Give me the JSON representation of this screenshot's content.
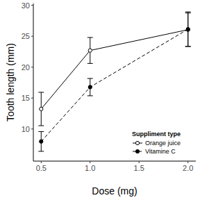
{
  "chart_data": {
    "type": "line",
    "x_label": "Dose (mg)",
    "y_label": "Tooth length (mm)",
    "x": [
      0.5,
      1,
      2
    ],
    "xlim": [
      0.42,
      2.08
    ],
    "xticks": [
      {
        "value": 0.5,
        "label": "0.5"
      },
      {
        "value": 1,
        "label": "1.0"
      },
      {
        "value": 1.5,
        "label": "1.5"
      },
      {
        "value": 2,
        "label": "2.0"
      }
    ],
    "ylim": [
      4.8,
      30.3
    ],
    "yticks": [
      10,
      15,
      20,
      25,
      30
    ],
    "grid": false,
    "legend": "bottom-right",
    "legend_title": "Suppliment type",
    "series": [
      {
        "name": "Orange juice",
        "color": "#000000",
        "marker": "circle_open",
        "line_style": "solid",
        "values": [
          13.23,
          22.7,
          26.06
        ],
        "errors": [
          2.7,
          2.1,
          2.7
        ]
      },
      {
        "name": "Vitamine C",
        "color": "#000000",
        "marker": "circle",
        "line_style": "dashed",
        "values": [
          7.98,
          16.77,
          26.14
        ],
        "errors": [
          1.6,
          1.4,
          2.8
        ]
      }
    ]
  }
}
